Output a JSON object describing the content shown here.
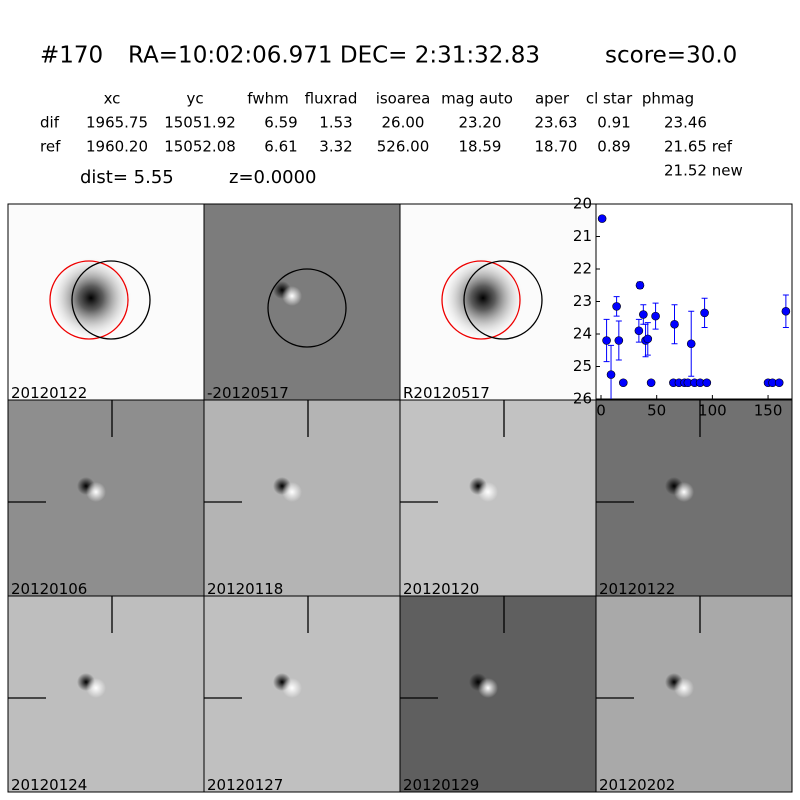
{
  "header": {
    "id": "#170",
    "coords": "RA=10:02:06.971 DEC= 2:31:32.83",
    "score": "score=30.0"
  },
  "table": {
    "columns": [
      "xc",
      "yc",
      "fwhm",
      "fluxrad",
      "isoarea",
      "mag auto",
      "aper",
      "cl star",
      "phmag"
    ],
    "rows": [
      [
        "dif",
        "1965.75",
        "15051.92",
        "6.59",
        "1.53",
        "26.00",
        "23.20",
        "23.63",
        "0.91",
        "23.46"
      ],
      [
        "ref",
        "1960.20",
        "15052.08",
        "6.61",
        "3.32",
        "526.00",
        "18.59",
        "18.70",
        "0.89",
        "21.65 ref"
      ]
    ],
    "extra": "21.52 new"
  },
  "dist": "dist=  5.55",
  "z": "z=0.0000",
  "panels": [
    {
      "label": "20120122"
    },
    {
      "label": "-20120517"
    },
    {
      "label": "R20120517"
    },
    {
      "label": "20120106"
    },
    {
      "label": "20120118"
    },
    {
      "label": "20120120"
    },
    {
      "label": "20120122"
    },
    {
      "label": "20120124"
    },
    {
      "label": "20120127"
    },
    {
      "label": "20120129"
    },
    {
      "label": "20120202"
    }
  ],
  "chart_data": {
    "type": "errorbar",
    "color": "#0000ff",
    "x": [
      1,
      5,
      9,
      14,
      16,
      20,
      34,
      35,
      38,
      40,
      42,
      45,
      49,
      65,
      66,
      70,
      75,
      78,
      81,
      84,
      89,
      93,
      95,
      150,
      154,
      160,
      166
    ],
    "values": [
      20.45,
      24.2,
      25.25,
      23.15,
      24.2,
      25.5,
      23.9,
      22.5,
      23.4,
      24.2,
      24.15,
      25.5,
      23.45,
      25.5,
      23.7,
      25.5,
      25.5,
      25.5,
      24.3,
      25.5,
      25.5,
      23.35,
      25.5,
      25.5,
      25.5,
      25.5,
      23.3
    ],
    "errors": [
      0.05,
      0.65,
      0.9,
      0.3,
      0.6,
      0.05,
      0.35,
      0.1,
      0.3,
      0.5,
      0.5,
      0.05,
      0.4,
      0.05,
      0.6,
      0.05,
      0.05,
      0.05,
      1.0,
      0.05,
      0.05,
      0.45,
      0.05,
      0.05,
      0.05,
      0.05,
      0.5
    ],
    "xlim": [
      -4.5,
      171.5
    ],
    "ylim": [
      26,
      20
    ],
    "xticks": [
      0,
      50,
      100,
      150
    ],
    "yticks": [
      20,
      21,
      22,
      23,
      24,
      25,
      26
    ]
  }
}
